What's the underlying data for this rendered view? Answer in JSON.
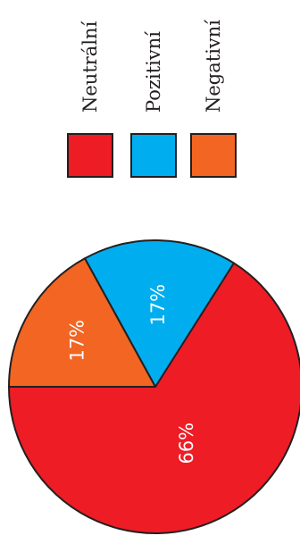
{
  "chart_data": {
    "type": "pie",
    "title": "",
    "slices": [
      {
        "label": "Neutrální",
        "value": 66,
        "display": "66%",
        "color": "#ee1c25"
      },
      {
        "label": "Pozitivní",
        "value": 17,
        "display": "17%",
        "color": "#00aeef"
      },
      {
        "label": "Negativní",
        "value": 17,
        "display": "17%",
        "color": "#f26522"
      }
    ],
    "legend": {
      "placement": "top",
      "orientation": "rotated-90-clockwise",
      "items": [
        {
          "label": "Neutrální",
          "color": "#ee1c25"
        },
        {
          "label": "Pozitivní",
          "color": "#00aeef"
        },
        {
          "label": "Negativní",
          "color": "#f26522"
        }
      ]
    },
    "stroke_color": "#231f20"
  }
}
